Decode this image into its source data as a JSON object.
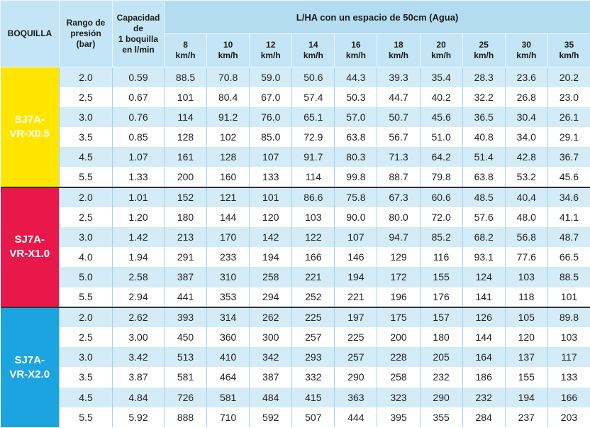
{
  "header": {
    "nozzle": [
      "BOQUILLA"
    ],
    "pressure": [
      "Rango de",
      "presión",
      "(bar)"
    ],
    "capacity": [
      "Capacidad",
      "de",
      "1 boquilla",
      "en l/min"
    ],
    "group": "L/HA con un espacio de 50cm (Agua)",
    "speeds": [
      [
        "8",
        "km/h"
      ],
      [
        "10",
        "km/h"
      ],
      [
        "12",
        "km/h"
      ],
      [
        "14",
        "km/h"
      ],
      [
        "16",
        "km/h"
      ],
      [
        "18",
        "km/h"
      ],
      [
        "20",
        "km/h"
      ],
      [
        "25",
        "km/h"
      ],
      [
        "30",
        "km/h"
      ],
      [
        "35",
        "km/h"
      ]
    ]
  },
  "groups": [
    {
      "nozzle": [
        "SJ7A-",
        "VR-X0.5"
      ],
      "color": "#ffe500",
      "rows": [
        [
          "2.0",
          "0.59",
          "88.5",
          "70.8",
          "59.0",
          "50.6",
          "44.3",
          "39.3",
          "35.4",
          "28.3",
          "23.6",
          "20.2"
        ],
        [
          "2.5",
          "0.67",
          "101",
          "80.4",
          "67.0",
          "57.4",
          "50.3",
          "44.7",
          "40.2",
          "32.2",
          "26.8",
          "23.0"
        ],
        [
          "3.0",
          "0.76",
          "114",
          "91.2",
          "76.0",
          "65.1",
          "57.0",
          "50.7",
          "45.6",
          "36.5",
          "30.4",
          "26.1"
        ],
        [
          "3.5",
          "0.85",
          "128",
          "102",
          "85.0",
          "72.9",
          "63.8",
          "56.7",
          "51.0",
          "40.8",
          "34.0",
          "29.1"
        ],
        [
          "4.5",
          "1.07",
          "161",
          "128",
          "107",
          "91.7",
          "80.3",
          "71.3",
          "64.2",
          "51.4",
          "42.8",
          "36.7"
        ],
        [
          "5.5",
          "1.33",
          "200",
          "160",
          "133",
          "114",
          "99.8",
          "88.7",
          "79.8",
          "63.8",
          "53.2",
          "45.6"
        ]
      ]
    },
    {
      "nozzle": [
        "SJ7A-",
        "VR-X1.0"
      ],
      "color": "#e8184b",
      "rows": [
        [
          "2.0",
          "1.01",
          "152",
          "121",
          "101",
          "86.6",
          "75.8",
          "67.3",
          "60.6",
          "48.5",
          "40.4",
          "34.6"
        ],
        [
          "2.5",
          "1.20",
          "180",
          "144",
          "120",
          "103",
          "90.0",
          "80.0",
          "72.0",
          "57.6",
          "48.0",
          "41.1"
        ],
        [
          "3.0",
          "1.42",
          "213",
          "170",
          "142",
          "122",
          "107",
          "94.7",
          "85.2",
          "68.2",
          "56.8",
          "48.7"
        ],
        [
          "4.0",
          "1.94",
          "291",
          "233",
          "194",
          "166",
          "146",
          "129",
          "116",
          "93.1",
          "77.6",
          "66.5"
        ],
        [
          "5.0",
          "2.58",
          "387",
          "310",
          "258",
          "221",
          "194",
          "172",
          "155",
          "124",
          "103",
          "88.5"
        ],
        [
          "5.5",
          "2.94",
          "441",
          "353",
          "294",
          "252",
          "221",
          "196",
          "176",
          "141",
          "118",
          "101"
        ]
      ]
    },
    {
      "nozzle": [
        "SJ7A-",
        "VR-X2.0"
      ],
      "color": "#1ba4e0",
      "rows": [
        [
          "2.0",
          "2.62",
          "393",
          "314",
          "262",
          "225",
          "197",
          "175",
          "157",
          "126",
          "105",
          "89.8"
        ],
        [
          "2.5",
          "3.00",
          "450",
          "360",
          "300",
          "257",
          "225",
          "200",
          "180",
          "144",
          "120",
          "103"
        ],
        [
          "3.0",
          "3.42",
          "513",
          "410",
          "342",
          "293",
          "257",
          "228",
          "205",
          "164",
          "137",
          "117"
        ],
        [
          "3.5",
          "3.87",
          "581",
          "464",
          "387",
          "332",
          "290",
          "258",
          "232",
          "186",
          "155",
          "133"
        ],
        [
          "4.5",
          "4.84",
          "726",
          "581",
          "484",
          "415",
          "363",
          "323",
          "290",
          "232",
          "194",
          "166"
        ],
        [
          "5.5",
          "5.92",
          "888",
          "710",
          "592",
          "507",
          "444",
          "395",
          "355",
          "284",
          "237",
          "203"
        ]
      ]
    }
  ]
}
